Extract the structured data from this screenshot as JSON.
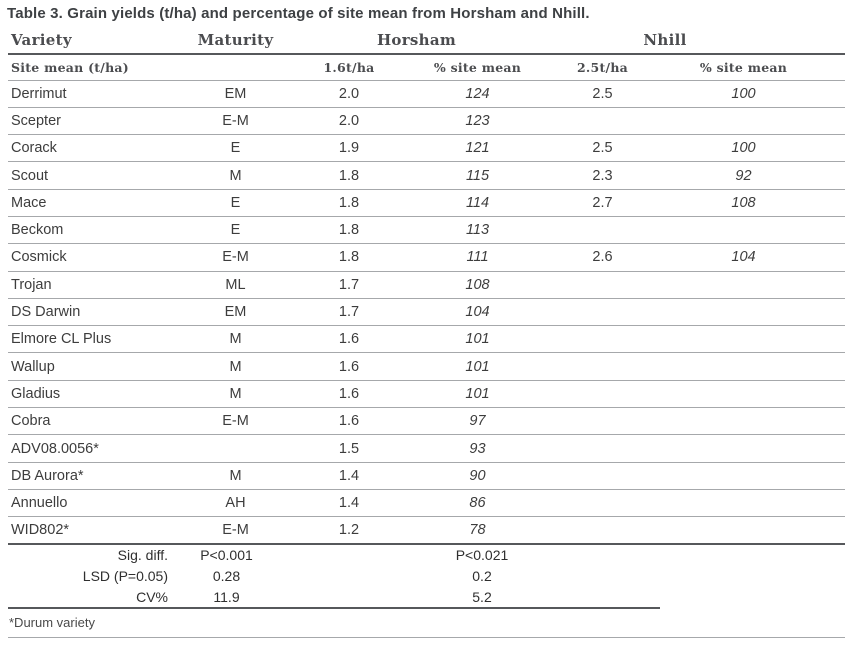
{
  "title": "Table 3. Grain yields (t/ha) and percentage of site mean from Horsham and Nhill.",
  "table": {
    "group_headers": {
      "variety": "Variety",
      "maturity": "Maturity",
      "horsham": "Horsham",
      "nhill": "Nhill"
    },
    "sub_headers": {
      "site_mean_label": "Site mean (t/ha)",
      "horsham_mean": "1.6t/ha",
      "horsham_pct": "% site mean",
      "nhill_mean": "2.5t/ha",
      "nhill_pct": "% site mean"
    },
    "rows": [
      {
        "variety": "Derrimut",
        "maturity": "EM",
        "horsham_yield": "2.0",
        "horsham_pct": "124",
        "nhill_yield": "2.5",
        "nhill_pct": "100"
      },
      {
        "variety": "Scepter",
        "maturity": "E-M",
        "horsham_yield": "2.0",
        "horsham_pct": "123",
        "nhill_yield": "",
        "nhill_pct": ""
      },
      {
        "variety": "Corack",
        "maturity": "E",
        "horsham_yield": "1.9",
        "horsham_pct": "121",
        "nhill_yield": "2.5",
        "nhill_pct": "100"
      },
      {
        "variety": "Scout",
        "maturity": "M",
        "horsham_yield": "1.8",
        "horsham_pct": "115",
        "nhill_yield": "2.3",
        "nhill_pct": "92"
      },
      {
        "variety": "Mace",
        "maturity": "E",
        "horsham_yield": "1.8",
        "horsham_pct": "114",
        "nhill_yield": "2.7",
        "nhill_pct": "108"
      },
      {
        "variety": "Beckom",
        "maturity": "E",
        "horsham_yield": "1.8",
        "horsham_pct": "113",
        "nhill_yield": "",
        "nhill_pct": ""
      },
      {
        "variety": "Cosmick",
        "maturity": "E-M",
        "horsham_yield": "1.8",
        "horsham_pct": "111",
        "nhill_yield": "2.6",
        "nhill_pct": "104"
      },
      {
        "variety": "Trojan",
        "maturity": "ML",
        "horsham_yield": "1.7",
        "horsham_pct": "108",
        "nhill_yield": "",
        "nhill_pct": ""
      },
      {
        "variety": "DS Darwin",
        "maturity": "EM",
        "horsham_yield": "1.7",
        "horsham_pct": "104",
        "nhill_yield": "",
        "nhill_pct": ""
      },
      {
        "variety": "Elmore CL Plus",
        "maturity": "M",
        "horsham_yield": "1.6",
        "horsham_pct": "101",
        "nhill_yield": "",
        "nhill_pct": ""
      },
      {
        "variety": "Wallup",
        "maturity": "M",
        "horsham_yield": "1.6",
        "horsham_pct": "101",
        "nhill_yield": "",
        "nhill_pct": ""
      },
      {
        "variety": "Gladius",
        "maturity": "M",
        "horsham_yield": "1.6",
        "horsham_pct": "101",
        "nhill_yield": "",
        "nhill_pct": ""
      },
      {
        "variety": "Cobra",
        "maturity": "E-M",
        "horsham_yield": "1.6",
        "horsham_pct": "97",
        "nhill_yield": "",
        "nhill_pct": ""
      },
      {
        "variety": "ADV08.0056*",
        "maturity": "",
        "horsham_yield": "1.5",
        "horsham_pct": "93",
        "nhill_yield": "",
        "nhill_pct": ""
      },
      {
        "variety": "DB Aurora*",
        "maturity": "M",
        "horsham_yield": "1.4",
        "horsham_pct": "90",
        "nhill_yield": "",
        "nhill_pct": ""
      },
      {
        "variety": "Annuello",
        "maturity": "AH",
        "horsham_yield": "1.4",
        "horsham_pct": "86",
        "nhill_yield": "",
        "nhill_pct": ""
      },
      {
        "variety": "WID802*",
        "maturity": "E-M",
        "horsham_yield": "1.2",
        "horsham_pct": "78",
        "nhill_yield": "",
        "nhill_pct": ""
      }
    ],
    "stats": [
      {
        "label": "Sig. diff.",
        "horsham": "P<0.001",
        "nhill": "P<0.021"
      },
      {
        "label": "LSD (P=0.05)",
        "horsham": "0.28",
        "nhill": "0.2"
      },
      {
        "label": "CV%",
        "horsham": "11.9",
        "nhill": "5.2"
      }
    ],
    "footnote": "*Durum variety"
  },
  "colors": {
    "title_text": "#3e4144",
    "header_text": "#4b4c4f",
    "body_text": "#3d3d3d",
    "stats_text": "#2f2f2f",
    "rule_dark": "#56585b",
    "rule_light": "#a6a8ab",
    "background": "#ffffff"
  }
}
